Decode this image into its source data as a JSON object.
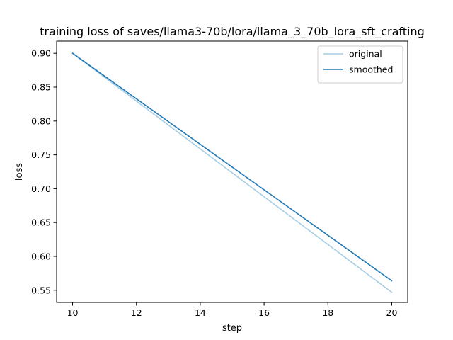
{
  "chart_data": {
    "type": "line",
    "title": "training loss of saves/llama3-70b/lora/llama_3_70b_lora_sft_crafting",
    "xlabel": "step",
    "ylabel": "loss",
    "xlim": [
      9.5,
      20.5
    ],
    "ylim": [
      0.532,
      0.918
    ],
    "xticks": [
      10,
      12,
      14,
      16,
      18,
      20
    ],
    "xtick_labels": [
      "10",
      "12",
      "14",
      "16",
      "18",
      "20"
    ],
    "yticks": [
      0.55,
      0.6,
      0.65,
      0.7,
      0.75,
      0.8,
      0.85,
      0.9
    ],
    "ytick_labels": [
      "0.55",
      "0.60",
      "0.65",
      "0.70",
      "0.75",
      "0.80",
      "0.85",
      "0.90"
    ],
    "grid": false,
    "legend_position": "top-right",
    "series": [
      {
        "name": "original",
        "color": "#a6cde3",
        "x": [
          10,
          20
        ],
        "y": [
          0.9,
          0.547
        ]
      },
      {
        "name": "smoothed",
        "color": "#1f77b4",
        "x": [
          10,
          20
        ],
        "y": [
          0.9,
          0.564
        ]
      }
    ]
  }
}
